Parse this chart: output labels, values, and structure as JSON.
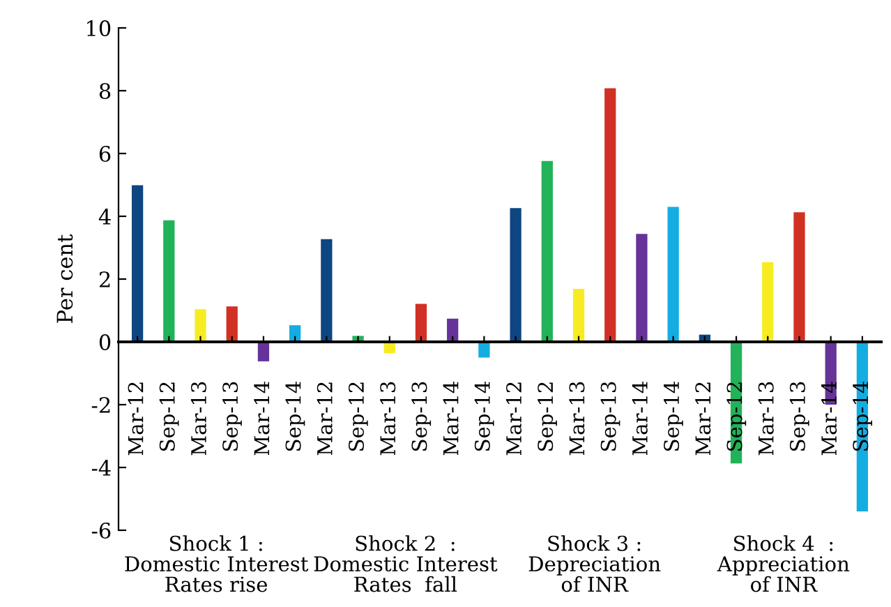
{
  "chart_data": {
    "type": "bar",
    "ylabel": "Per cent",
    "categories": [
      "Mar-12",
      "Sep-12",
      "Mar-13",
      "Sep-13",
      "Mar-14",
      "Sep-14",
      "Mar-12",
      "Sep-12",
      "Mar-13",
      "Sep-13",
      "Mar-14",
      "Sep-14",
      "Mar-12",
      "Sep-12",
      "Mar-13",
      "Sep-13",
      "Mar-14",
      "Sep-14",
      "Mar-12",
      "Sep-12",
      "Mar-13",
      "Sep-13",
      "Mar-14",
      "Sep-14"
    ],
    "values": [
      4.99,
      3.87,
      1.04,
      1.13,
      -0.62,
      0.53,
      3.27,
      0.19,
      -0.36,
      1.21,
      0.74,
      -0.5,
      4.26,
      5.76,
      1.69,
      8.08,
      3.44,
      4.3,
      0.23,
      -3.87,
      2.54,
      4.13,
      -2.0,
      -5.4
    ],
    "colors": [
      "#0d4680",
      "#22b259",
      "#f7ec22",
      "#d13124",
      "#663399",
      "#14ade2",
      "#0d4680",
      "#22b259",
      "#f7ec22",
      "#d13124",
      "#663399",
      "#14ade2",
      "#0d4680",
      "#22b259",
      "#f7ec22",
      "#d13124",
      "#663399",
      "#14ade2",
      "#0d4680",
      "#22b259",
      "#f7ec22",
      "#d13124",
      "#663399",
      "#14ade2"
    ],
    "annotations": [
      "Shock 1 :\nDomestic Interest\nRates rise",
      "Shock 2  :\nDomestic Interest\nRates  fall",
      "Shock 3 :\nDepreciation\nof INR",
      "Shock 4  :\nAppreciation\nof INR"
    ],
    "ylim": [
      -6,
      10
    ],
    "yticks": [
      -6,
      -4,
      -2,
      0,
      2,
      4,
      6,
      8,
      10
    ],
    "legend": false,
    "grid": false
  }
}
